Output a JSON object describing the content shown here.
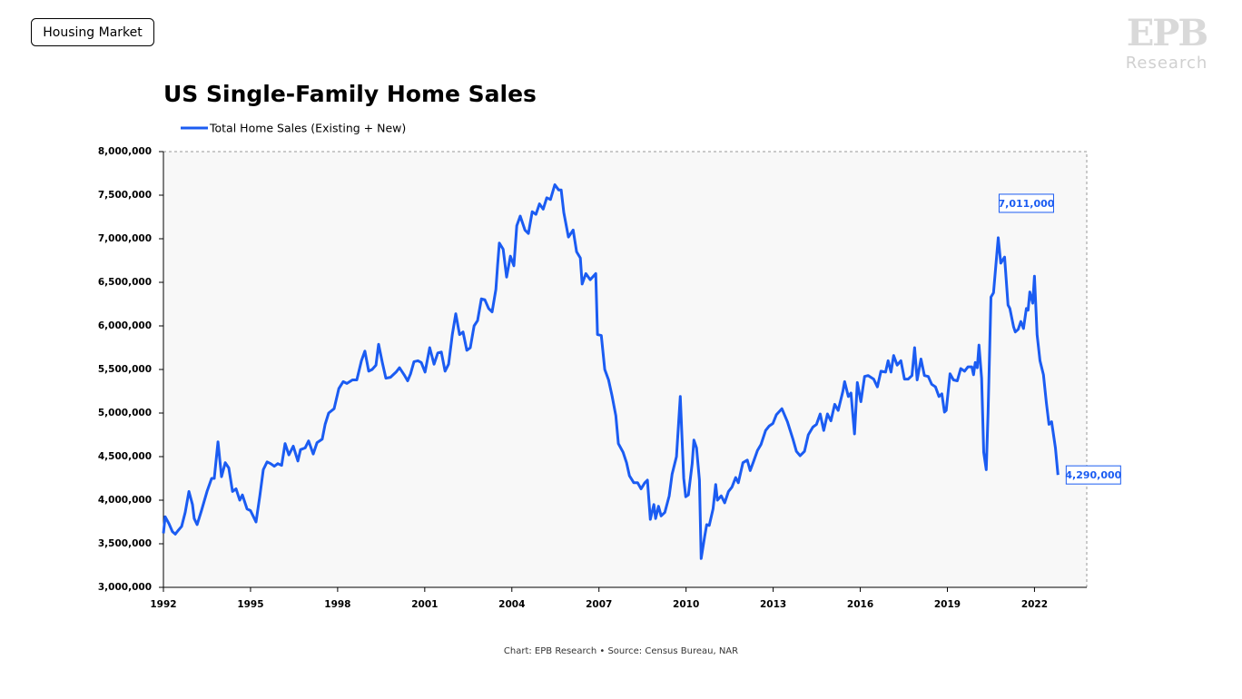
{
  "header": {
    "tag": "Housing Market",
    "logo": "EPB",
    "logo_sub": "Research"
  },
  "chart_data": {
    "type": "line",
    "title": "US Single-Family Home Sales",
    "source": "Chart: EPB Research  •  Source: Census Bureau, NAR",
    "xlim": [
      1992,
      2023.8
    ],
    "xticks": [
      1992,
      1995,
      1998,
      2001,
      2004,
      2007,
      2010,
      2013,
      2016,
      2019,
      2022
    ],
    "ylim": [
      3000000,
      8000000
    ],
    "yticks": [
      {
        "value": 3000000,
        "label": "3,000,000"
      },
      {
        "value": 3500000,
        "label": "3,500,000"
      },
      {
        "value": 4000000,
        "label": "4,000,000"
      },
      {
        "value": 4500000,
        "label": "4,500,000"
      },
      {
        "value": 5000000,
        "label": "5,000,000"
      },
      {
        "value": 5500000,
        "label": "5,500,000"
      },
      {
        "value": 6000000,
        "label": "6,000,000"
      },
      {
        "value": 6500000,
        "label": "6,500,000"
      },
      {
        "value": 7000000,
        "label": "7,000,000"
      },
      {
        "value": 7500000,
        "label": "7,500,000"
      },
      {
        "value": 8000000,
        "label": "8,000,000"
      }
    ],
    "grid": false,
    "legend": "top-left",
    "annotations": [
      {
        "text": "7,011,000",
        "x": 2020.75,
        "y": 7011000
      },
      {
        "text": "4,290,000",
        "x": 2022.81,
        "y": 4290000
      }
    ],
    "x": [
      1992.0,
      1992.06,
      1992.19,
      1992.31,
      1992.41,
      1992.5,
      1992.63,
      1992.75,
      1992.88,
      1993.0,
      1993.06,
      1993.16,
      1993.31,
      1993.5,
      1993.66,
      1993.75,
      1993.88,
      1994.0,
      1994.13,
      1994.25,
      1994.38,
      1994.5,
      1994.63,
      1994.72,
      1994.88,
      1995.0,
      1995.19,
      1995.32,
      1995.44,
      1995.57,
      1995.69,
      1995.82,
      1995.94,
      1996.07,
      1996.19,
      1996.32,
      1996.47,
      1996.63,
      1996.72,
      1996.88,
      1997.0,
      1997.16,
      1997.29,
      1997.47,
      1997.57,
      1997.69,
      1997.88,
      1998.04,
      1998.19,
      1998.32,
      1998.51,
      1998.66,
      1998.82,
      1998.94,
      1999.07,
      1999.19,
      1999.32,
      1999.41,
      1999.54,
      1999.66,
      1999.82,
      2000.01,
      2000.13,
      2000.29,
      2000.41,
      2000.51,
      2000.63,
      2000.76,
      2000.88,
      2001.01,
      2001.17,
      2001.32,
      2001.45,
      2001.57,
      2001.7,
      2001.82,
      2001.95,
      2002.07,
      2002.2,
      2002.32,
      2002.45,
      2002.57,
      2002.7,
      2002.82,
      2002.95,
      2003.07,
      2003.2,
      2003.32,
      2003.45,
      2003.51,
      2003.57,
      2003.7,
      2003.82,
      2003.95,
      2004.07,
      2004.17,
      2004.29,
      2004.45,
      2004.57,
      2004.7,
      2004.83,
      2004.95,
      2005.08,
      2005.2,
      2005.33,
      2005.48,
      2005.61,
      2005.7,
      2005.79,
      2005.95,
      2006.11,
      2006.23,
      2006.36,
      2006.42,
      2006.55,
      2006.7,
      2006.89,
      2006.95,
      2007.08,
      2007.2,
      2007.33,
      2007.45,
      2007.58,
      2007.67,
      2007.83,
      2007.95,
      2008.05,
      2008.2,
      2008.33,
      2008.45,
      2008.58,
      2008.67,
      2008.77,
      2008.89,
      2008.95,
      2009.05,
      2009.14,
      2009.27,
      2009.42,
      2009.52,
      2009.67,
      2009.8,
      2009.92,
      2009.99,
      2010.08,
      2010.21,
      2010.27,
      2010.36,
      2010.46,
      2010.52,
      2010.64,
      2010.71,
      2010.8,
      2010.93,
      2011.02,
      2011.08,
      2011.21,
      2011.33,
      2011.46,
      2011.58,
      2011.71,
      2011.8,
      2011.96,
      2012.11,
      2012.21,
      2012.33,
      2012.46,
      2012.58,
      2012.74,
      2012.86,
      2012.99,
      2013.11,
      2013.3,
      2013.49,
      2013.68,
      2013.8,
      2013.93,
      2014.08,
      2014.21,
      2014.37,
      2014.49,
      2014.62,
      2014.74,
      2014.87,
      2014.99,
      2015.12,
      2015.24,
      2015.4,
      2015.46,
      2015.59,
      2015.68,
      2015.8,
      2015.9,
      2016.02,
      2016.15,
      2016.27,
      2016.46,
      2016.59,
      2016.71,
      2016.87,
      2016.96,
      2017.06,
      2017.15,
      2017.27,
      2017.4,
      2017.52,
      2017.65,
      2017.78,
      2017.87,
      2017.96,
      2018.09,
      2018.21,
      2018.34,
      2018.46,
      2018.59,
      2018.71,
      2018.81,
      2018.9,
      2018.96,
      2019.09,
      2019.21,
      2019.34,
      2019.46,
      2019.59,
      2019.71,
      2019.84,
      2019.9,
      2019.96,
      2020.03,
      2020.09,
      2020.18,
      2020.25,
      2020.34,
      2020.4,
      2020.5,
      2020.59,
      2020.75,
      2020.84,
      2020.97,
      2021.09,
      2021.15,
      2021.28,
      2021.34,
      2021.44,
      2021.53,
      2021.62,
      2021.72,
      2021.78,
      2021.84,
      2021.94,
      2022.0,
      2022.09,
      2022.19,
      2022.31,
      2022.41,
      2022.5,
      2022.59,
      2022.72,
      2022.81
    ],
    "series": [
      {
        "name": "Total Home Sales (Existing + New)",
        "color": "#1b5cf2",
        "values": [
          3620000,
          3810000,
          3730000,
          3640000,
          3610000,
          3650000,
          3700000,
          3860000,
          4100000,
          3950000,
          3790000,
          3720000,
          3880000,
          4100000,
          4250000,
          4250000,
          4670000,
          4270000,
          4430000,
          4370000,
          4100000,
          4130000,
          4000000,
          4060000,
          3900000,
          3880000,
          3750000,
          4050000,
          4350000,
          4440000,
          4420000,
          4390000,
          4420000,
          4400000,
          4650000,
          4520000,
          4620000,
          4450000,
          4580000,
          4600000,
          4680000,
          4530000,
          4660000,
          4700000,
          4870000,
          5000000,
          5050000,
          5280000,
          5360000,
          5340000,
          5380000,
          5380000,
          5600000,
          5710000,
          5480000,
          5500000,
          5550000,
          5790000,
          5580000,
          5400000,
          5410000,
          5470000,
          5520000,
          5440000,
          5370000,
          5450000,
          5590000,
          5600000,
          5580000,
          5470000,
          5750000,
          5560000,
          5690000,
          5700000,
          5480000,
          5560000,
          5900000,
          6140000,
          5900000,
          5930000,
          5720000,
          5750000,
          6000000,
          6060000,
          6310000,
          6300000,
          6200000,
          6160000,
          6420000,
          6700000,
          6950000,
          6880000,
          6560000,
          6800000,
          6690000,
          7150000,
          7260000,
          7100000,
          7060000,
          7310000,
          7280000,
          7400000,
          7340000,
          7470000,
          7450000,
          7620000,
          7560000,
          7560000,
          7300000,
          7020000,
          7100000,
          6850000,
          6780000,
          6480000,
          6600000,
          6530000,
          6600000,
          5900000,
          5890000,
          5500000,
          5380000,
          5200000,
          4970000,
          4650000,
          4550000,
          4430000,
          4280000,
          4200000,
          4200000,
          4130000,
          4200000,
          4230000,
          3780000,
          3950000,
          3790000,
          3930000,
          3820000,
          3860000,
          4050000,
          4300000,
          4500000,
          5190000,
          4250000,
          4040000,
          4060000,
          4420000,
          4690000,
          4600000,
          4230000,
          3330000,
          3580000,
          3720000,
          3710000,
          3900000,
          4180000,
          4000000,
          4050000,
          3970000,
          4100000,
          4150000,
          4260000,
          4200000,
          4430000,
          4460000,
          4340000,
          4450000,
          4570000,
          4640000,
          4800000,
          4850000,
          4880000,
          4980000,
          5050000,
          4900000,
          4700000,
          4560000,
          4510000,
          4560000,
          4750000,
          4840000,
          4870000,
          4990000,
          4800000,
          4990000,
          4910000,
          5100000,
          5030000,
          5250000,
          5360000,
          5190000,
          5230000,
          4760000,
          5350000,
          5130000,
          5420000,
          5430000,
          5390000,
          5300000,
          5480000,
          5470000,
          5600000,
          5470000,
          5660000,
          5550000,
          5600000,
          5390000,
          5390000,
          5430000,
          5750000,
          5380000,
          5620000,
          5430000,
          5420000,
          5330000,
          5300000,
          5190000,
          5220000,
          5010000,
          5030000,
          5450000,
          5380000,
          5370000,
          5510000,
          5480000,
          5530000,
          5530000,
          5440000,
          5580000,
          5520000,
          5780000,
          5400000,
          4550000,
          4350000,
          5000000,
          6330000,
          6380000,
          7011000,
          6720000,
          6790000,
          6240000,
          6200000,
          5990000,
          5930000,
          5960000,
          6050000,
          5970000,
          6200000,
          6180000,
          6390000,
          6260000,
          6570000,
          5900000,
          5600000,
          5440000,
          5120000,
          4870000,
          4900000,
          4600000,
          4290000
        ]
      }
    ]
  }
}
